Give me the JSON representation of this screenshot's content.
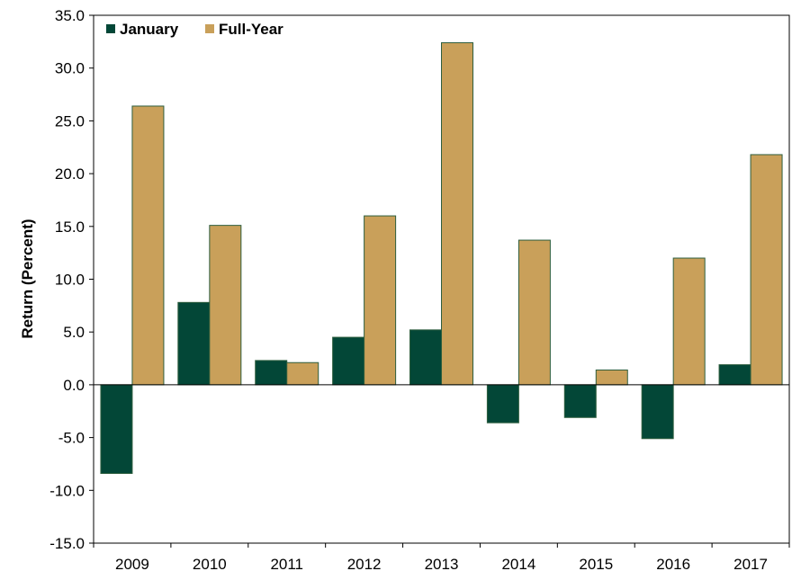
{
  "chart_data": {
    "type": "bar",
    "categories": [
      "2009",
      "2010",
      "2011",
      "2012",
      "2013",
      "2014",
      "2015",
      "2016",
      "2017"
    ],
    "series": [
      {
        "name": "January",
        "color": "#034737",
        "values": [
          -8.4,
          7.8,
          2.3,
          4.5,
          5.2,
          -3.6,
          -3.1,
          -5.1,
          1.9
        ]
      },
      {
        "name": "Full-Year",
        "color": "#C9A05A",
        "values": [
          26.4,
          15.1,
          2.1,
          16.0,
          32.4,
          13.7,
          1.4,
          12.0,
          21.8
        ]
      }
    ],
    "title": "",
    "xlabel": "",
    "ylabel": "Return (Percent)",
    "ylim": [
      -15,
      35
    ],
    "yticks": [
      35,
      30,
      25,
      20,
      15,
      10,
      5,
      0,
      -5,
      -10,
      -15
    ],
    "ytick_labels": [
      "35.0",
      "30.0",
      "25.0",
      "20.0",
      "15.0",
      "10.0",
      "5.0",
      "0.0",
      "-5.0",
      "-10.0",
      "-15.0"
    ],
    "grid": false,
    "legend_position": "top-left",
    "bar_outline_color": "#2E5E3E"
  }
}
